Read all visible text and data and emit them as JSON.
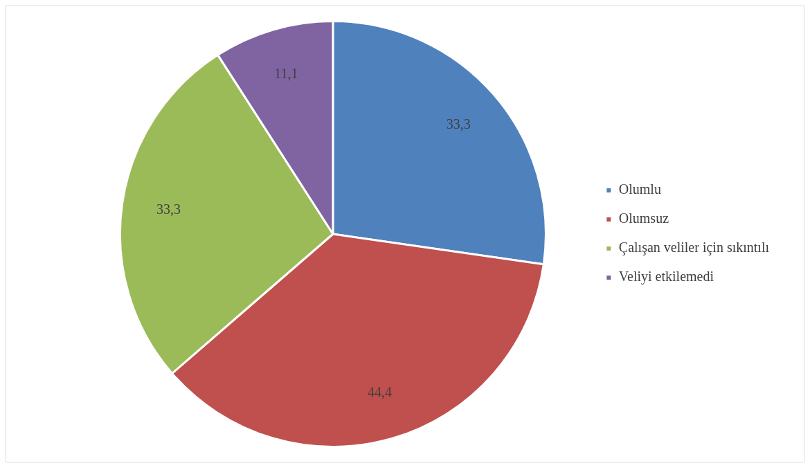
{
  "chart_data": {
    "type": "pie",
    "categories": [
      "Olumlu",
      "Olumsuz",
      "Çalışan veliler için sıkıntılı",
      "Veliyi etkilemedi"
    ],
    "values": [
      33.3,
      44.4,
      33.3,
      11.1
    ],
    "colors": [
      "#4f81bd",
      "#c0504d",
      "#9bbb59",
      "#8064a2"
    ],
    "value_labels": [
      "33,3",
      "44,4",
      "33,3",
      "11,1"
    ],
    "legend": "right"
  }
}
